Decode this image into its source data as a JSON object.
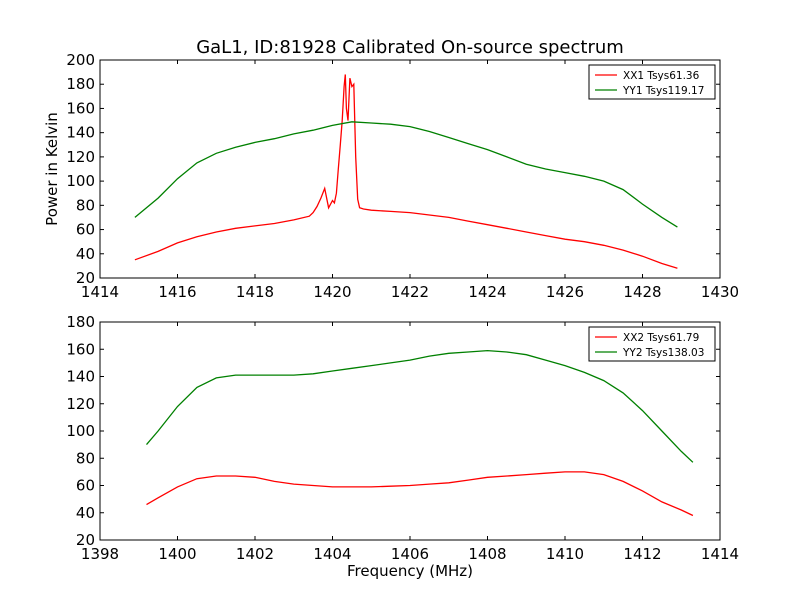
{
  "figure": {
    "title": "GaL1, ID:81928 Calibrated On-source spectrum"
  },
  "chart_data": [
    {
      "type": "line",
      "title": "GaL1, ID:81928 Calibrated On-source spectrum",
      "xlabel": "",
      "ylabel": "Power in Kelvin",
      "xlim": [
        1414,
        1430
      ],
      "ylim": [
        20,
        200
      ],
      "xticks": [
        1414,
        1416,
        1418,
        1420,
        1422,
        1424,
        1426,
        1428,
        1430
      ],
      "yticks": [
        20,
        40,
        60,
        80,
        100,
        120,
        140,
        160,
        180,
        200
      ],
      "grid": false,
      "legend": "top-right",
      "series": [
        {
          "name": "XX1 Tsys61.36",
          "color": "#ff0000",
          "x": [
            1414.9,
            1415.5,
            1416.0,
            1416.5,
            1417.0,
            1417.5,
            1418.0,
            1418.5,
            1419.0,
            1419.4,
            1419.5,
            1419.6,
            1419.7,
            1419.8,
            1419.9,
            1420.0,
            1420.05,
            1420.1,
            1420.15,
            1420.2,
            1420.25,
            1420.3,
            1420.33,
            1420.36,
            1420.4,
            1420.45,
            1420.5,
            1420.55,
            1420.6,
            1420.65,
            1420.7,
            1420.8,
            1421.0,
            1421.5,
            1422.0,
            1422.5,
            1423.0,
            1423.5,
            1424.0,
            1424.5,
            1425.0,
            1425.5,
            1426.0,
            1426.5,
            1427.0,
            1427.5,
            1428.0,
            1428.5,
            1428.9
          ],
          "values": [
            35,
            42,
            49,
            54,
            58,
            61,
            63,
            65,
            68,
            71,
            74,
            79,
            86,
            94,
            78,
            84,
            82,
            90,
            110,
            130,
            150,
            178,
            188,
            160,
            150,
            185,
            178,
            180,
            120,
            85,
            78,
            77,
            76,
            75,
            74,
            72,
            70,
            67,
            64,
            61,
            58,
            55,
            52,
            50,
            47,
            43,
            38,
            32,
            28
          ]
        },
        {
          "name": "YY1 Tsys119.17",
          "color": "#008000",
          "x": [
            1414.9,
            1415.5,
            1416.0,
            1416.5,
            1417.0,
            1417.5,
            1418.0,
            1418.5,
            1419.0,
            1419.5,
            1420.0,
            1420.5,
            1421.0,
            1421.5,
            1422.0,
            1422.5,
            1423.0,
            1423.5,
            1424.0,
            1424.5,
            1425.0,
            1425.5,
            1426.0,
            1426.5,
            1427.0,
            1427.5,
            1428.0,
            1428.5,
            1428.9
          ],
          "values": [
            70,
            86,
            102,
            115,
            123,
            128,
            132,
            135,
            139,
            142,
            146,
            149,
            148,
            147,
            145,
            141,
            136,
            131,
            126,
            120,
            114,
            110,
            107,
            104,
            100,
            93,
            81,
            70,
            62
          ]
        }
      ]
    },
    {
      "type": "line",
      "title": "",
      "xlabel": "Frequency (MHz)",
      "ylabel": "",
      "xlim": [
        1398,
        1414
      ],
      "ylim": [
        20,
        180
      ],
      "xticks": [
        1398,
        1400,
        1402,
        1404,
        1406,
        1408,
        1410,
        1412,
        1414
      ],
      "yticks": [
        20,
        40,
        60,
        80,
        100,
        120,
        140,
        160,
        180
      ],
      "grid": false,
      "legend": "top-right",
      "series": [
        {
          "name": "XX2 Tsys61.79",
          "color": "#ff0000",
          "x": [
            1399.2,
            1399.5,
            1400.0,
            1400.5,
            1401.0,
            1401.5,
            1402.0,
            1402.5,
            1403.0,
            1403.5,
            1404.0,
            1404.5,
            1405.0,
            1405.5,
            1406.0,
            1406.5,
            1407.0,
            1407.5,
            1408.0,
            1408.5,
            1409.0,
            1409.5,
            1410.0,
            1410.5,
            1411.0,
            1411.5,
            1412.0,
            1412.5,
            1413.0,
            1413.3
          ],
          "values": [
            46,
            51,
            59,
            65,
            67,
            67,
            66,
            63,
            61,
            60,
            59,
            59,
            59,
            59.5,
            60,
            61,
            62,
            64,
            66,
            67,
            68,
            69,
            70,
            70,
            68,
            63,
            56,
            48,
            42,
            38
          ]
        },
        {
          "name": "YY2 Tsys138.03",
          "color": "#008000",
          "x": [
            1399.2,
            1399.5,
            1400.0,
            1400.5,
            1401.0,
            1401.5,
            1402.0,
            1402.5,
            1403.0,
            1403.5,
            1404.0,
            1404.5,
            1405.0,
            1405.5,
            1406.0,
            1406.5,
            1407.0,
            1407.5,
            1408.0,
            1408.5,
            1409.0,
            1409.5,
            1410.0,
            1410.5,
            1411.0,
            1411.5,
            1412.0,
            1412.5,
            1413.0,
            1413.3
          ],
          "values": [
            90,
            100,
            118,
            132,
            139,
            141,
            141,
            141,
            141,
            142,
            144,
            146,
            148,
            150,
            152,
            155,
            157,
            158,
            159,
            158,
            156,
            152,
            148,
            143,
            137,
            128,
            115,
            100,
            85,
            77
          ]
        }
      ]
    }
  ]
}
